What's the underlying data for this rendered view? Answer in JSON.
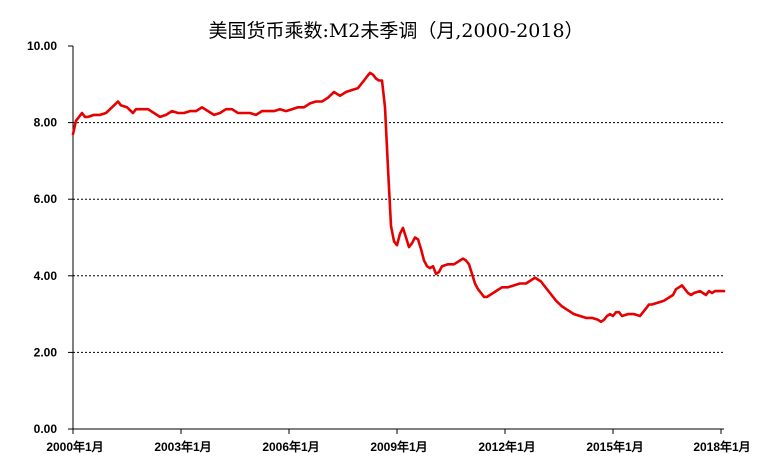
{
  "chart_data": {
    "type": "line",
    "title": "美国货币乘数:M2未季调（月,2000-2018）",
    "xlabel": "",
    "ylabel": "",
    "xlim": [
      "2000-01",
      "2018-02"
    ],
    "ylim": [
      0,
      10
    ],
    "x_ticks": [
      "2000-01",
      "2003-01",
      "2006-01",
      "2009-01",
      "2012-01",
      "2015-01",
      "2018-01"
    ],
    "x_tick_labels": [
      "2000年1月",
      "2003年1月",
      "2006年1月",
      "2009年1月",
      "2012年1月",
      "2015年1月",
      "2018年1月"
    ],
    "y_ticks": [
      0,
      2,
      4,
      6,
      8,
      10
    ],
    "y_tick_labels": [
      "0.00",
      "2.00",
      "4.00",
      "6.00",
      "8.00",
      "10.00"
    ],
    "grid": true,
    "legend": "none",
    "colors": {
      "line": "#e60000",
      "grid": "#000000",
      "axis": "#000000"
    },
    "series": [
      {
        "x": [
          "2000-01",
          "2000-02",
          "2000-03",
          "2000-04",
          "2000-05",
          "2000-06",
          "2000-08",
          "2000-10",
          "2000-12",
          "2001-02",
          "2001-04",
          "2001-05",
          "2001-07",
          "2001-09",
          "2001-10",
          "2001-12",
          "2002-02",
          "2002-04",
          "2002-06",
          "2002-08",
          "2002-10",
          "2002-12",
          "2003-02",
          "2003-04",
          "2003-06",
          "2003-08",
          "2003-10",
          "2003-12",
          "2004-02",
          "2004-04",
          "2004-06",
          "2004-08",
          "2004-10",
          "2004-12",
          "2005-02",
          "2005-04",
          "2005-06",
          "2005-08",
          "2005-10",
          "2005-12",
          "2006-02",
          "2006-04",
          "2006-06",
          "2006-08",
          "2006-10",
          "2006-12",
          "2007-02",
          "2007-04",
          "2007-06",
          "2007-08",
          "2007-10",
          "2007-12",
          "2008-02",
          "2008-03",
          "2008-04",
          "2008-05",
          "2008-06",
          "2008-07",
          "2008-08",
          "2008-09",
          "2008-10",
          "2008-11",
          "2008-12",
          "2009-01",
          "2009-02",
          "2009-03",
          "2009-04",
          "2009-05",
          "2009-06",
          "2009-07",
          "2009-08",
          "2009-09",
          "2009-10",
          "2009-11",
          "2009-12",
          "2010-01",
          "2010-02",
          "2010-03",
          "2010-04",
          "2010-06",
          "2010-08",
          "2010-10",
          "2010-11",
          "2010-12",
          "2011-01",
          "2011-02",
          "2011-03",
          "2011-04",
          "2011-05",
          "2011-06",
          "2011-07",
          "2011-08",
          "2011-10",
          "2011-12",
          "2012-02",
          "2012-04",
          "2012-06",
          "2012-08",
          "2012-10",
          "2012-11",
          "2012-12",
          "2013-01",
          "2013-02",
          "2013-04",
          "2013-06",
          "2013-08",
          "2013-10",
          "2013-12",
          "2014-02",
          "2014-04",
          "2014-06",
          "2014-08",
          "2014-09",
          "2014-10",
          "2014-11",
          "2014-12",
          "2015-01",
          "2015-02",
          "2015-03",
          "2015-04",
          "2015-06",
          "2015-08",
          "2015-10",
          "2015-11",
          "2015-12",
          "2016-01",
          "2016-02",
          "2016-04",
          "2016-06",
          "2016-08",
          "2016-09",
          "2016-10",
          "2016-11",
          "2016-12",
          "2017-01",
          "2017-02",
          "2017-03",
          "2017-04",
          "2017-06",
          "2017-08",
          "2017-09",
          "2017-10",
          "2017-11",
          "2017-12",
          "2018-01",
          "2018-02"
        ],
        "y": [
          7.7,
          8.05,
          8.15,
          8.25,
          8.15,
          8.15,
          8.2,
          8.2,
          8.25,
          8.4,
          8.55,
          8.45,
          8.4,
          8.25,
          8.35,
          8.35,
          8.35,
          8.25,
          8.15,
          8.2,
          8.3,
          8.25,
          8.25,
          8.3,
          8.3,
          8.4,
          8.3,
          8.2,
          8.25,
          8.35,
          8.35,
          8.25,
          8.25,
          8.25,
          8.2,
          8.3,
          8.3,
          8.3,
          8.35,
          8.3,
          8.35,
          8.4,
          8.4,
          8.5,
          8.55,
          8.55,
          8.65,
          8.8,
          8.7,
          8.8,
          8.85,
          8.9,
          9.1,
          9.2,
          9.3,
          9.25,
          9.15,
          9.1,
          9.1,
          8.4,
          6.8,
          5.3,
          4.9,
          4.8,
          5.1,
          5.25,
          5.0,
          4.75,
          4.85,
          5.0,
          4.95,
          4.7,
          4.4,
          4.25,
          4.2,
          4.25,
          4.05,
          4.1,
          4.25,
          4.3,
          4.3,
          4.4,
          4.45,
          4.4,
          4.3,
          4.05,
          3.8,
          3.65,
          3.55,
          3.45,
          3.45,
          3.5,
          3.6,
          3.7,
          3.7,
          3.75,
          3.8,
          3.8,
          3.9,
          3.95,
          3.9,
          3.85,
          3.75,
          3.55,
          3.35,
          3.2,
          3.1,
          3.0,
          2.95,
          2.9,
          2.9,
          2.85,
          2.8,
          2.85,
          2.95,
          3.0,
          2.95,
          3.05,
          3.05,
          2.95,
          3.0,
          3.0,
          2.95,
          3.05,
          3.15,
          3.25,
          3.25,
          3.3,
          3.35,
          3.45,
          3.5,
          3.65,
          3.7,
          3.75,
          3.65,
          3.55,
          3.5,
          3.55,
          3.6,
          3.5,
          3.6,
          3.55,
          3.6,
          3.6,
          3.6,
          3.6
        ]
      }
    ]
  }
}
